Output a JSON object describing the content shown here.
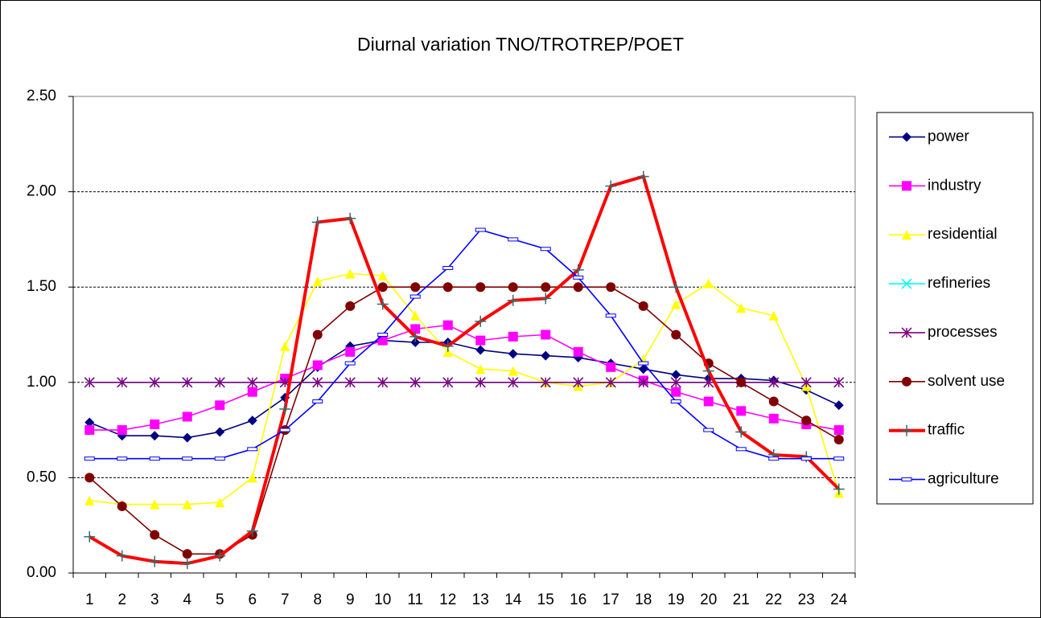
{
  "chart_data": {
    "type": "line",
    "title": "Diurnal variation TNO/TROTREP/POET",
    "categories": [
      "1",
      "2",
      "3",
      "4",
      "5",
      "6",
      "7",
      "8",
      "9",
      "10",
      "11",
      "12",
      "13",
      "14",
      "15",
      "16",
      "17",
      "18",
      "19",
      "20",
      "21",
      "22",
      "23",
      "24"
    ],
    "ylim": [
      0,
      2.5
    ],
    "yticks": [
      {
        "value": 0,
        "label": "0.00"
      },
      {
        "value": 0.5,
        "label": "0.50"
      },
      {
        "value": 1,
        "label": "1.00"
      },
      {
        "value": 1.5,
        "label": "1.50"
      },
      {
        "value": 2,
        "label": "2.00"
      },
      {
        "value": 2.5,
        "label": "2.50"
      }
    ],
    "grid": true,
    "legend": "right",
    "series": [
      {
        "name": "power",
        "color": "#000080",
        "marker": "diamond",
        "values": [
          0.79,
          0.72,
          0.72,
          0.71,
          0.74,
          0.8,
          0.92,
          1.08,
          1.19,
          1.22,
          1.21,
          1.21,
          1.17,
          1.15,
          1.14,
          1.13,
          1.1,
          1.07,
          1.04,
          1.02,
          1.02,
          1.01,
          0.96,
          0.88
        ]
      },
      {
        "name": "industry",
        "color": "#ff00ff",
        "marker": "square",
        "values": [
          0.75,
          0.75,
          0.78,
          0.82,
          0.88,
          0.95,
          1.02,
          1.09,
          1.16,
          1.22,
          1.28,
          1.3,
          1.22,
          1.24,
          1.25,
          1.16,
          1.08,
          1.01,
          0.95,
          0.9,
          0.85,
          0.81,
          0.78,
          0.75
        ]
      },
      {
        "name": "residential",
        "color": "#ffff00",
        "marker": "triangle",
        "values": [
          0.38,
          0.36,
          0.36,
          0.36,
          0.37,
          0.5,
          1.19,
          1.53,
          1.57,
          1.56,
          1.35,
          1.16,
          1.07,
          1.06,
          1.0,
          0.98,
          1.0,
          1.12,
          1.41,
          1.52,
          1.39,
          1.35,
          0.98,
          0.42
        ]
      },
      {
        "name": "refineries",
        "color": "#00ffff",
        "marker": "x",
        "values": [
          1,
          1,
          1,
          1,
          1,
          1,
          1,
          1,
          1,
          1,
          1,
          1,
          1,
          1,
          1,
          1,
          1,
          1,
          1,
          1,
          1,
          1,
          1,
          1
        ]
      },
      {
        "name": "processes",
        "color": "#800080",
        "marker": "star",
        "values": [
          1,
          1,
          1,
          1,
          1,
          1,
          1,
          1,
          1,
          1,
          1,
          1,
          1,
          1,
          1,
          1,
          1,
          1,
          1,
          1,
          1,
          1,
          1,
          1
        ]
      },
      {
        "name": "solvent use",
        "color": "#800000",
        "marker": "circle",
        "values": [
          0.5,
          0.35,
          0.2,
          0.1,
          0.1,
          0.2,
          0.75,
          1.25,
          1.4,
          1.5,
          1.5,
          1.5,
          1.5,
          1.5,
          1.5,
          1.5,
          1.5,
          1.4,
          1.25,
          1.1,
          1.0,
          0.9,
          0.8,
          0.7
        ]
      },
      {
        "name": "traffic",
        "color": "#ff0000",
        "marker": "plus",
        "values": [
          0.19,
          0.09,
          0.06,
          0.05,
          0.09,
          0.22,
          0.86,
          1.84,
          1.86,
          1.41,
          1.24,
          1.19,
          1.32,
          1.43,
          1.44,
          1.59,
          2.03,
          2.08,
          1.5,
          1.06,
          0.74,
          0.62,
          0.61,
          0.44
        ]
      },
      {
        "name": "agriculture",
        "color": "#0000ff",
        "marker": "dash",
        "values": [
          0.6,
          0.6,
          0.6,
          0.6,
          0.6,
          0.65,
          0.75,
          0.9,
          1.1,
          1.25,
          1.45,
          1.6,
          1.8,
          1.75,
          1.7,
          1.55,
          1.35,
          1.1,
          0.9,
          0.75,
          0.65,
          0.6,
          0.6,
          0.6
        ]
      }
    ]
  }
}
